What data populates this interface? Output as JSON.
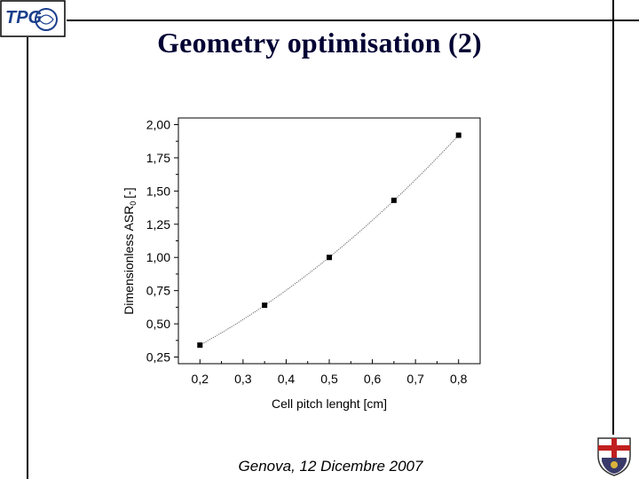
{
  "slide": {
    "title": "Geometry optimisation (2)",
    "footer": "Genova, 12 Dicembre 2007",
    "logo_text": "TPG"
  },
  "chart_data": {
    "type": "scatter",
    "xlabel": "Cell pitch lenght [cm]",
    "ylabel": "Dimensionless ASR",
    "ylabel_subscript": "0",
    "ylabel_unit": "[-]",
    "xlim": [
      0.15,
      0.85
    ],
    "ylim": [
      0.2,
      2.05
    ],
    "x_ticks": [
      {
        "v": 0.2,
        "label": "0,2"
      },
      {
        "v": 0.3,
        "label": "0,3"
      },
      {
        "v": 0.4,
        "label": "0,4"
      },
      {
        "v": 0.5,
        "label": "0,5"
      },
      {
        "v": 0.6,
        "label": "0,6"
      },
      {
        "v": 0.7,
        "label": "0,7"
      },
      {
        "v": 0.8,
        "label": "0,8"
      }
    ],
    "y_ticks": [
      {
        "v": 0.25,
        "label": "0,25"
      },
      {
        "v": 0.5,
        "label": "0,50"
      },
      {
        "v": 0.75,
        "label": "0,75"
      },
      {
        "v": 1.0,
        "label": "1,00"
      },
      {
        "v": 1.25,
        "label": "1,25"
      },
      {
        "v": 1.5,
        "label": "1,50"
      },
      {
        "v": 1.75,
        "label": "1,75"
      },
      {
        "v": 2.0,
        "label": "2,00"
      }
    ],
    "points": [
      {
        "x": 0.2,
        "y": 0.34
      },
      {
        "x": 0.35,
        "y": 0.64
      },
      {
        "x": 0.5,
        "y": 1.0
      },
      {
        "x": 0.65,
        "y": 1.43
      },
      {
        "x": 0.8,
        "y": 1.92
      }
    ],
    "fit_line": true,
    "grid": false,
    "colors": {
      "marker": "#000000",
      "fit": "#555555",
      "axes": "#000000"
    }
  }
}
